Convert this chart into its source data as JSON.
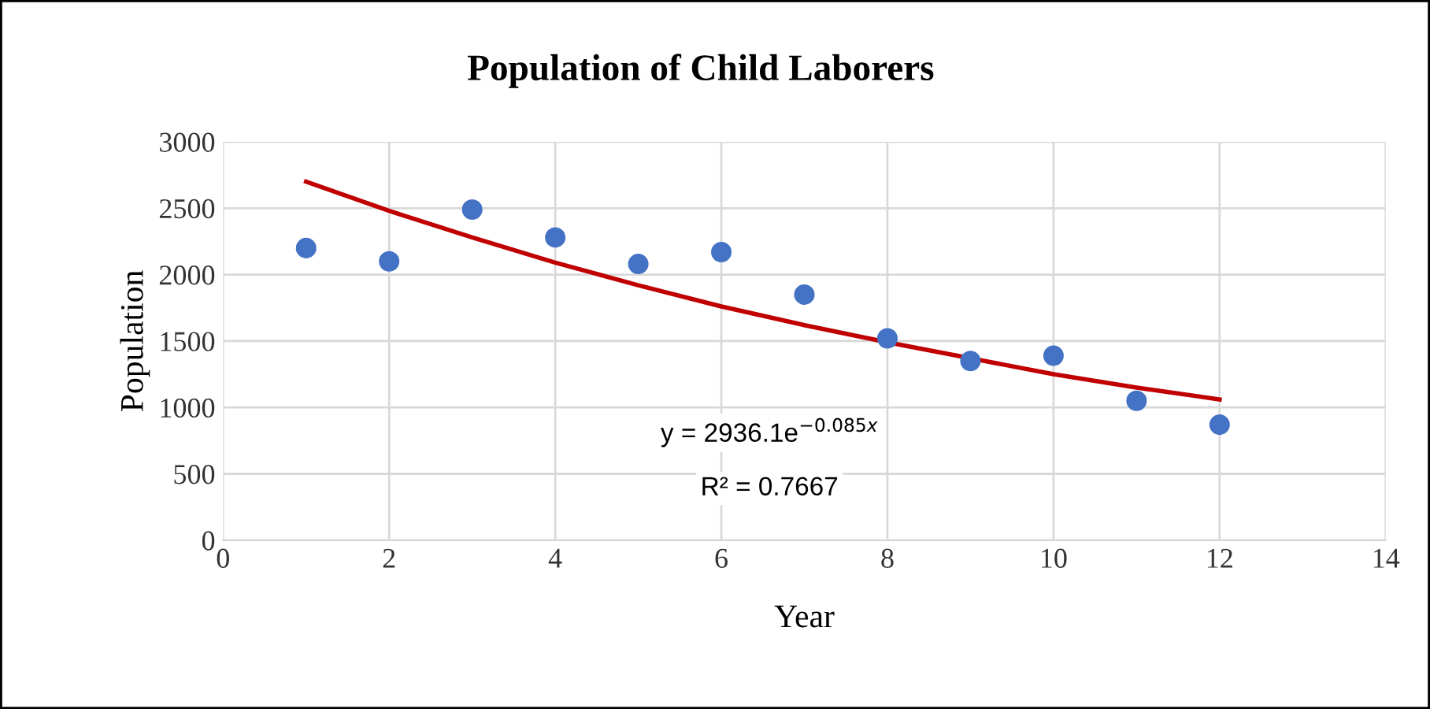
{
  "chart_data": {
    "type": "scatter",
    "title": "Population of Child Laborers",
    "xlabel": "Year",
    "ylabel": "Population",
    "xlim": [
      0,
      14
    ],
    "xticks": [
      0,
      2,
      4,
      6,
      8,
      10,
      12,
      14
    ],
    "ylim": [
      0,
      3000
    ],
    "yticks": [
      0,
      500,
      1000,
      1500,
      2000,
      2500,
      3000
    ],
    "grid": true,
    "series": [
      {
        "type": "scatter",
        "marker": "circle",
        "color": "#4472c4",
        "x": [
          1,
          2,
          3,
          4,
          5,
          6,
          7,
          8,
          9,
          10,
          11,
          12
        ],
        "values": [
          2200,
          2100,
          2490,
          2280,
          2080,
          2170,
          1850,
          1520,
          1350,
          1390,
          1050,
          870
        ]
      },
      {
        "type": "line",
        "marker": "none",
        "color": "#c00000",
        "line_style": "solid",
        "x": [
          1,
          2,
          3,
          4,
          5,
          6,
          7,
          8,
          9,
          10,
          11,
          12
        ],
        "values": [
          2700,
          2480,
          2280,
          2090,
          1920,
          1760,
          1620,
          1490,
          1370,
          1250,
          1150,
          1060
        ]
      }
    ],
    "annotations": [
      "y = 2936.1e$^{−0.085x}$",
      "R² = 0.7667"
    ]
  }
}
